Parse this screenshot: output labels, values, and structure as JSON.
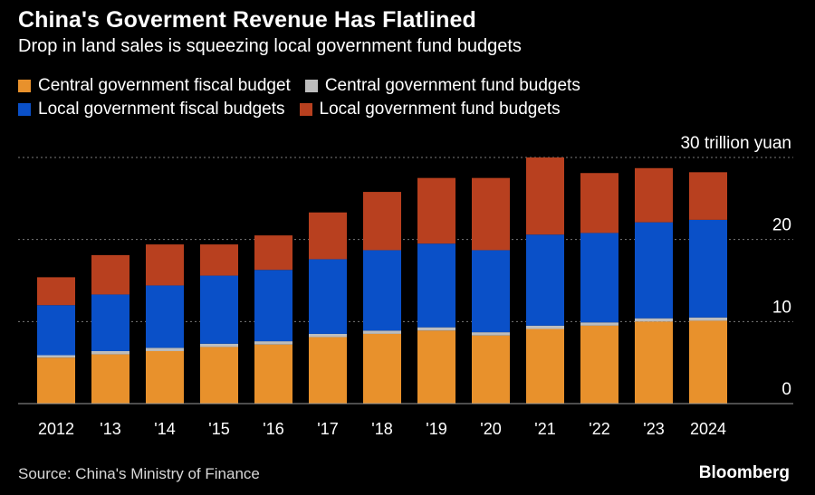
{
  "header": {
    "title": "China's Goverment Revenue Has Flatlined",
    "subtitle": "Drop in land sales is squeezing local government fund budgets"
  },
  "footer": {
    "source": "Source: China's Ministry of Finance",
    "brand": "Bloomberg"
  },
  "chart_data": {
    "type": "bar",
    "stacked": true,
    "title": "China's Goverment Revenue Has Flatlined",
    "subtitle": "Drop in land sales is squeezing local government fund budgets",
    "categories": [
      "2012",
      "'13",
      "'14",
      "'15",
      "'16",
      "'17",
      "'18",
      "'19",
      "'20",
      "'21",
      "'22",
      "'23",
      "2024"
    ],
    "y_unit_label": "30 trillion yuan",
    "y_ticks": [
      0,
      10,
      20,
      30
    ],
    "y_tick_labels": [
      "0",
      "10",
      "20",
      "30 trillion yuan"
    ],
    "ylim": [
      0,
      30
    ],
    "grid": true,
    "legend_position": "top",
    "series": [
      {
        "name": "Central government fiscal budget",
        "color": "#e8912c",
        "values": [
          5.6,
          6.0,
          6.4,
          6.9,
          7.2,
          8.1,
          8.5,
          8.9,
          8.3,
          9.1,
          9.5,
          10.0,
          10.1
        ]
      },
      {
        "name": "Central government fund budgets",
        "color": "#bdbdbd",
        "values": [
          0.3,
          0.4,
          0.4,
          0.4,
          0.4,
          0.4,
          0.4,
          0.4,
          0.4,
          0.4,
          0.4,
          0.4,
          0.4
        ]
      },
      {
        "name": "Local government fiscal budgets",
        "color": "#0a50c8",
        "values": [
          6.1,
          6.9,
          7.6,
          8.3,
          8.7,
          9.1,
          9.8,
          10.2,
          10.0,
          11.1,
          10.9,
          11.7,
          11.9
        ]
      },
      {
        "name": "Local government fund budgets",
        "color": "#b8401f",
        "values": [
          3.4,
          4.8,
          5.0,
          3.8,
          4.2,
          5.7,
          7.1,
          8.0,
          8.8,
          9.4,
          7.3,
          6.6,
          5.8
        ]
      }
    ]
  }
}
